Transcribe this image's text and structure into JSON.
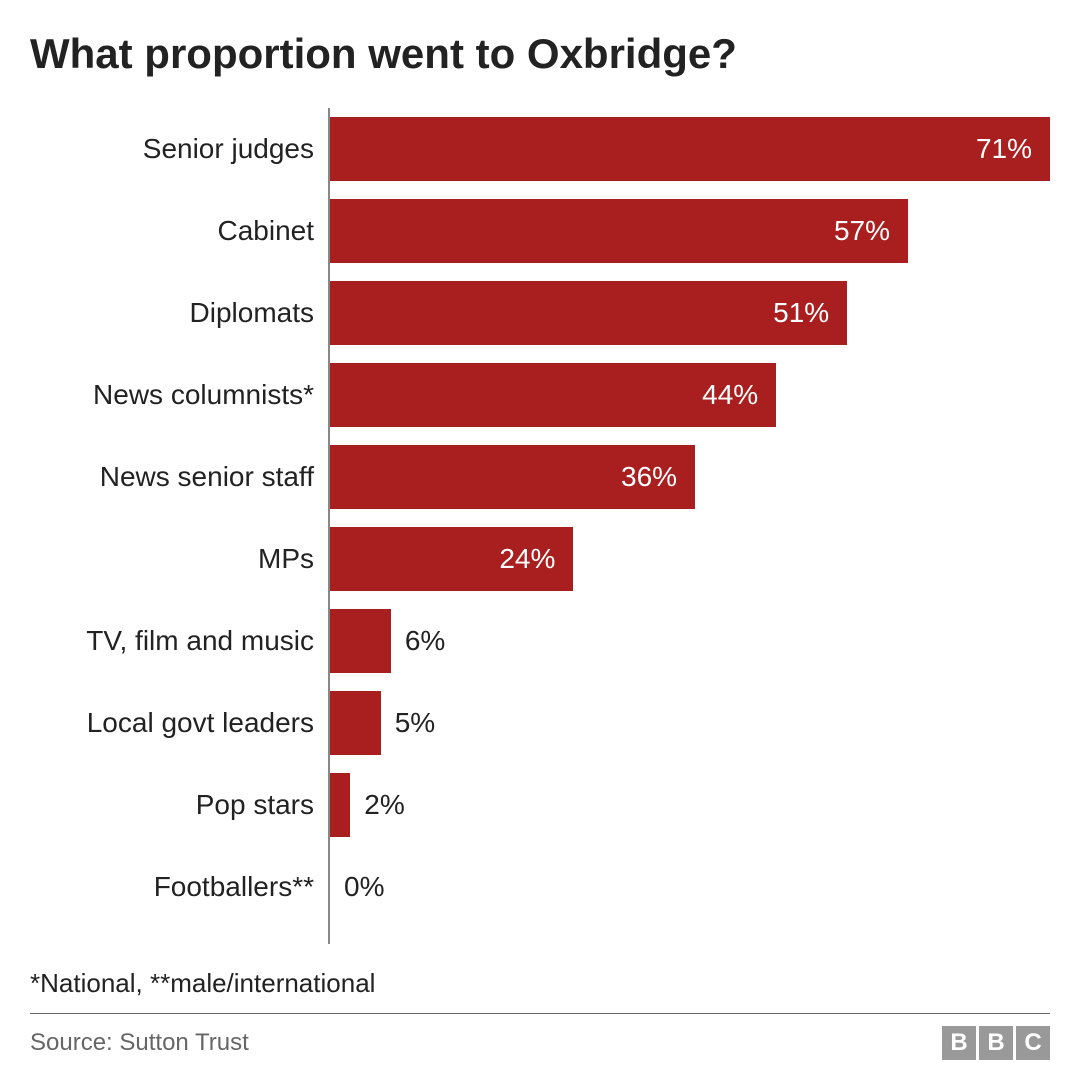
{
  "chart": {
    "type": "bar-horizontal",
    "title": "What proportion went to Oxbridge?",
    "bar_color": "#a91e1e",
    "value_color_inside": "#ffffff",
    "value_color_outside": "#222222",
    "label_fontsize": 28,
    "value_fontsize": 28,
    "title_fontsize": 42,
    "axis_color": "#888888",
    "background": "#ffffff",
    "max_value": 71,
    "bar_max_width_pct": 100,
    "rows": [
      {
        "label": "Senior judges",
        "value": 71,
        "value_text": "71%",
        "value_pos": "inside"
      },
      {
        "label": "Cabinet",
        "value": 57,
        "value_text": "57%",
        "value_pos": "inside"
      },
      {
        "label": "Diplomats",
        "value": 51,
        "value_text": "51%",
        "value_pos": "inside"
      },
      {
        "label": "News columnists*",
        "value": 44,
        "value_text": "44%",
        "value_pos": "inside"
      },
      {
        "label": "News senior staff",
        "value": 36,
        "value_text": "36%",
        "value_pos": "inside"
      },
      {
        "label": "MPs",
        "value": 24,
        "value_text": "24%",
        "value_pos": "inside"
      },
      {
        "label": "TV, film and music",
        "value": 6,
        "value_text": "6%",
        "value_pos": "outside"
      },
      {
        "label": "Local govt leaders",
        "value": 5,
        "value_text": "5%",
        "value_pos": "outside"
      },
      {
        "label": "Pop stars",
        "value": 2,
        "value_text": "2%",
        "value_pos": "outside"
      },
      {
        "label": "Footballers**",
        "value": 0,
        "value_text": "0%",
        "value_pos": "outside"
      }
    ]
  },
  "footnote": "*National, **male/international",
  "source": "Source: Sutton Trust",
  "logo": {
    "letters": [
      "B",
      "B",
      "C"
    ],
    "box_color": "#999999",
    "text_color": "#ffffff"
  }
}
